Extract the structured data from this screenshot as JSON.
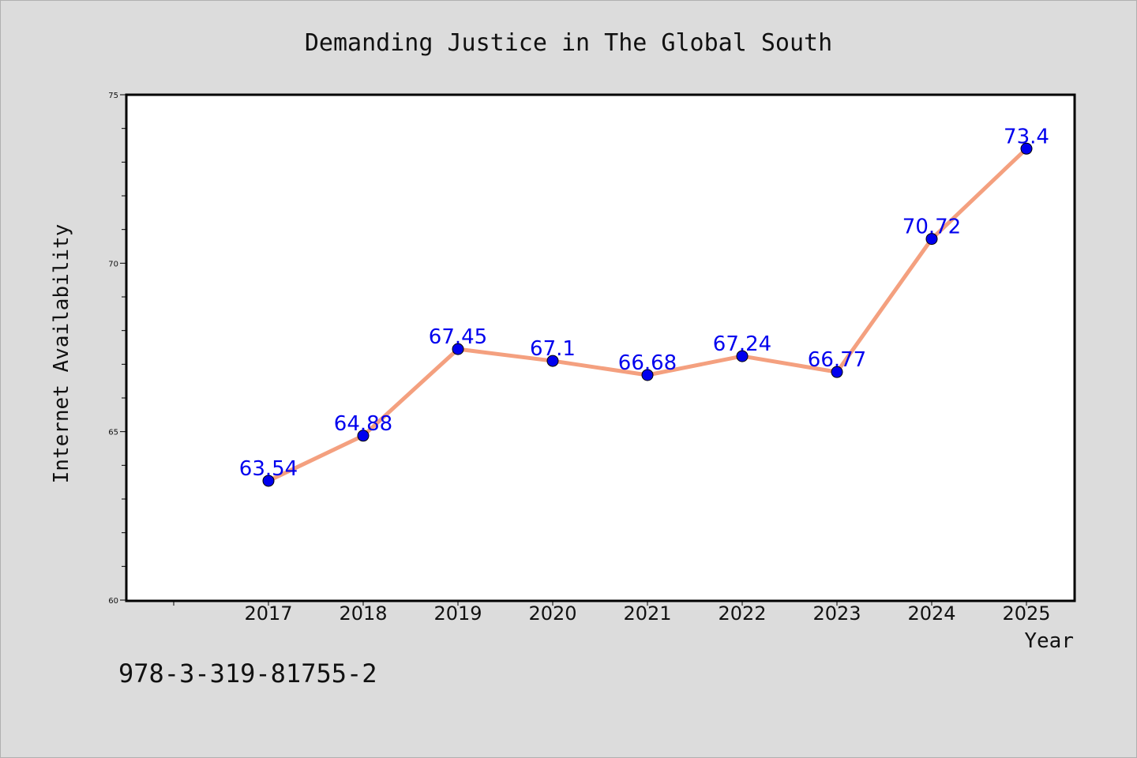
{
  "chart_data": {
    "type": "line",
    "title": "Demanding Justice in The Global South",
    "xlabel": "Year",
    "ylabel": "Internet Availability",
    "categories": [
      "2017",
      "2018",
      "2019",
      "2020",
      "2021",
      "2022",
      "2023",
      "2024",
      "2025"
    ],
    "series": [
      {
        "values": [
          63.54,
          64.88,
          67.45,
          67.1,
          66.68,
          67.24,
          66.77,
          70.72,
          73.4
        ],
        "data_labels": [
          "63.54",
          "64.88",
          "67.45",
          "67.1",
          "66.68",
          "67.24",
          "66.77",
          "70.72",
          "73.4"
        ],
        "line_color": "#f4a07f",
        "marker_color": "#0000ee",
        "label_color": "#0000ee"
      }
    ],
    "ylim": [
      60,
      75
    ],
    "yticks": [
      "60",
      "65",
      "70",
      "75"
    ],
    "grid": false
  },
  "footer": {
    "isbn": "978-3-319-81755-2"
  },
  "colors": {
    "background": "#dcdcdc",
    "plot_area": "#ffffff",
    "axes": "#000000"
  }
}
